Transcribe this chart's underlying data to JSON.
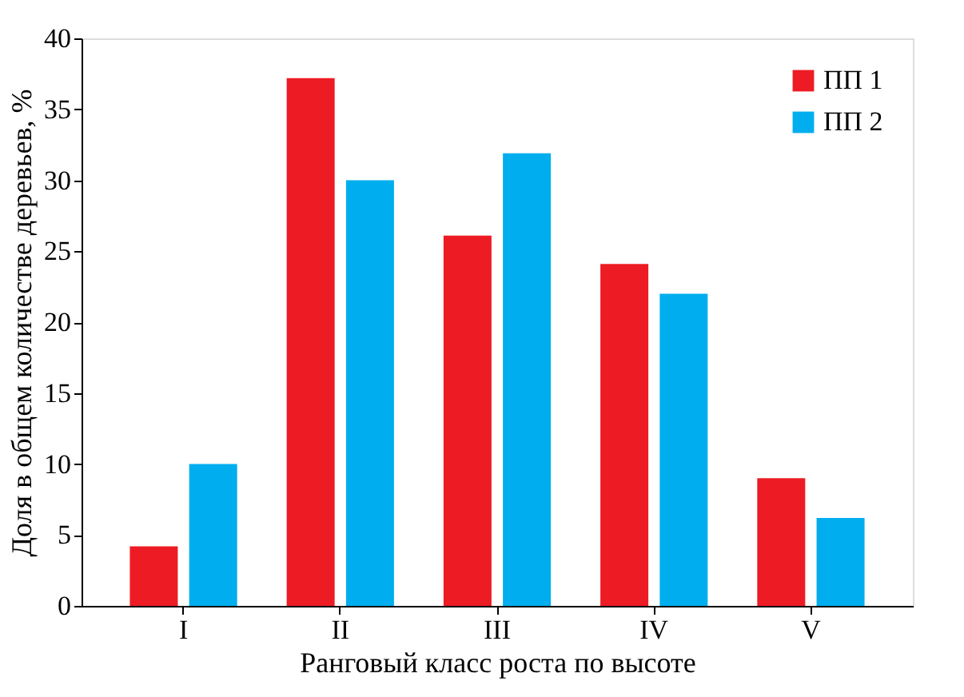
{
  "chart_data": {
    "type": "bar",
    "xlabel": "Ранговый класс роста по высоте",
    "ylabel": "Доля в общем количестве деревьев, %",
    "categories": [
      "I",
      "II",
      "III",
      "IV",
      "V"
    ],
    "series": [
      {
        "name": "ПП 1",
        "color": "#ed1c24",
        "values": [
          4.2,
          37.2,
          26.1,
          24.1,
          9.0
        ]
      },
      {
        "name": "ПП 2",
        "color": "#00aeef",
        "values": [
          10.0,
          30.0,
          31.9,
          22.0,
          6.2
        ]
      }
    ],
    "ylim": [
      0,
      40
    ],
    "yticks": [
      0,
      5,
      10,
      15,
      20,
      25,
      30,
      35,
      40
    ],
    "grid": false,
    "legend": "top right"
  }
}
